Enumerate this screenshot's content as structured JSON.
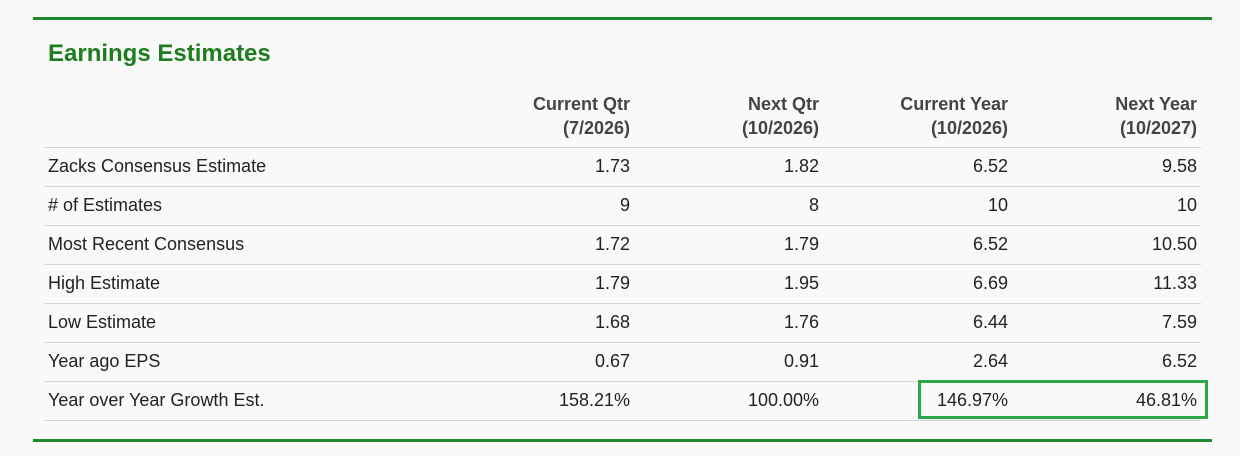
{
  "header": {
    "title": "Earnings Estimates"
  },
  "table": {
    "columns": [
      [
        "Current Qtr",
        "(7/2026)"
      ],
      [
        "Next Qtr",
        "(10/2026)"
      ],
      [
        "Current Year",
        "(10/2026)"
      ],
      [
        "Next Year",
        "(10/2027)"
      ]
    ],
    "rows": [
      [
        "Zacks Consensus Estimate",
        "1.73",
        "1.82",
        "6.52",
        "9.58"
      ],
      [
        "# of Estimates",
        "9",
        "8",
        "10",
        "10"
      ],
      [
        "Most Recent Consensus",
        "1.72",
        "1.79",
        "6.52",
        "10.50"
      ],
      [
        "High Estimate",
        "1.79",
        "1.95",
        "6.69",
        "11.33"
      ],
      [
        "Low Estimate",
        "1.68",
        "1.76",
        "6.44",
        "7.59"
      ],
      [
        "Year ago EPS",
        "0.67",
        "0.91",
        "2.64",
        "6.52"
      ],
      [
        "Year over Year Growth Est.",
        "158.21%",
        "100.00%",
        "146.97%",
        "46.81%"
      ]
    ]
  }
}
